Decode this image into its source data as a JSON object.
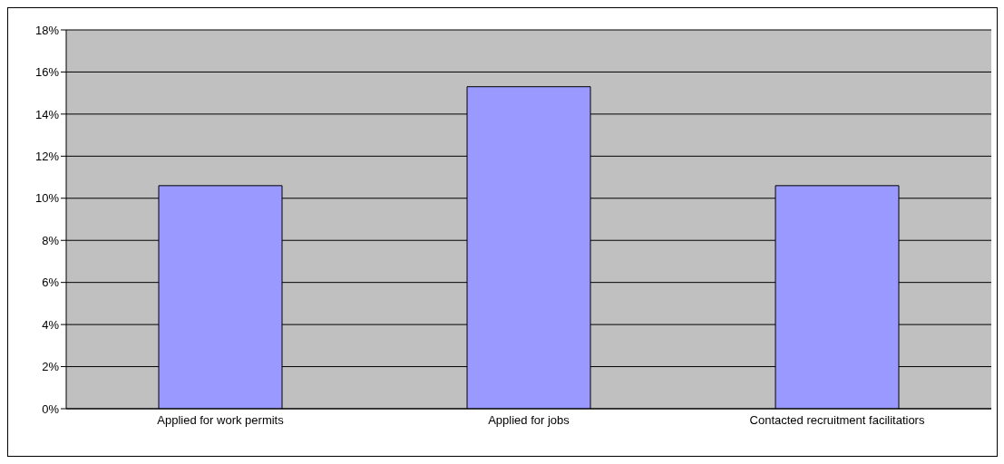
{
  "chart_data": {
    "type": "bar",
    "categories": [
      "Applied for work permits",
      "Applied for jobs",
      "Contacted recruitment facilitatiors"
    ],
    "values": [
      10.6,
      15.3,
      10.6
    ],
    "color": "#9999ff",
    "ylim": [
      0,
      18
    ],
    "yticks": [
      {
        "value": 0,
        "label": "0%"
      },
      {
        "value": 2,
        "label": "2%"
      },
      {
        "value": 4,
        "label": "4%"
      },
      {
        "value": 6,
        "label": "6%"
      },
      {
        "value": 8,
        "label": "8%"
      },
      {
        "value": 10,
        "label": "10%"
      },
      {
        "value": 12,
        "label": "12%"
      },
      {
        "value": 14,
        "label": "14%"
      },
      {
        "value": 16,
        "label": "16%"
      },
      {
        "value": 18,
        "label": "18%"
      }
    ],
    "grid": "y",
    "legend": false
  }
}
